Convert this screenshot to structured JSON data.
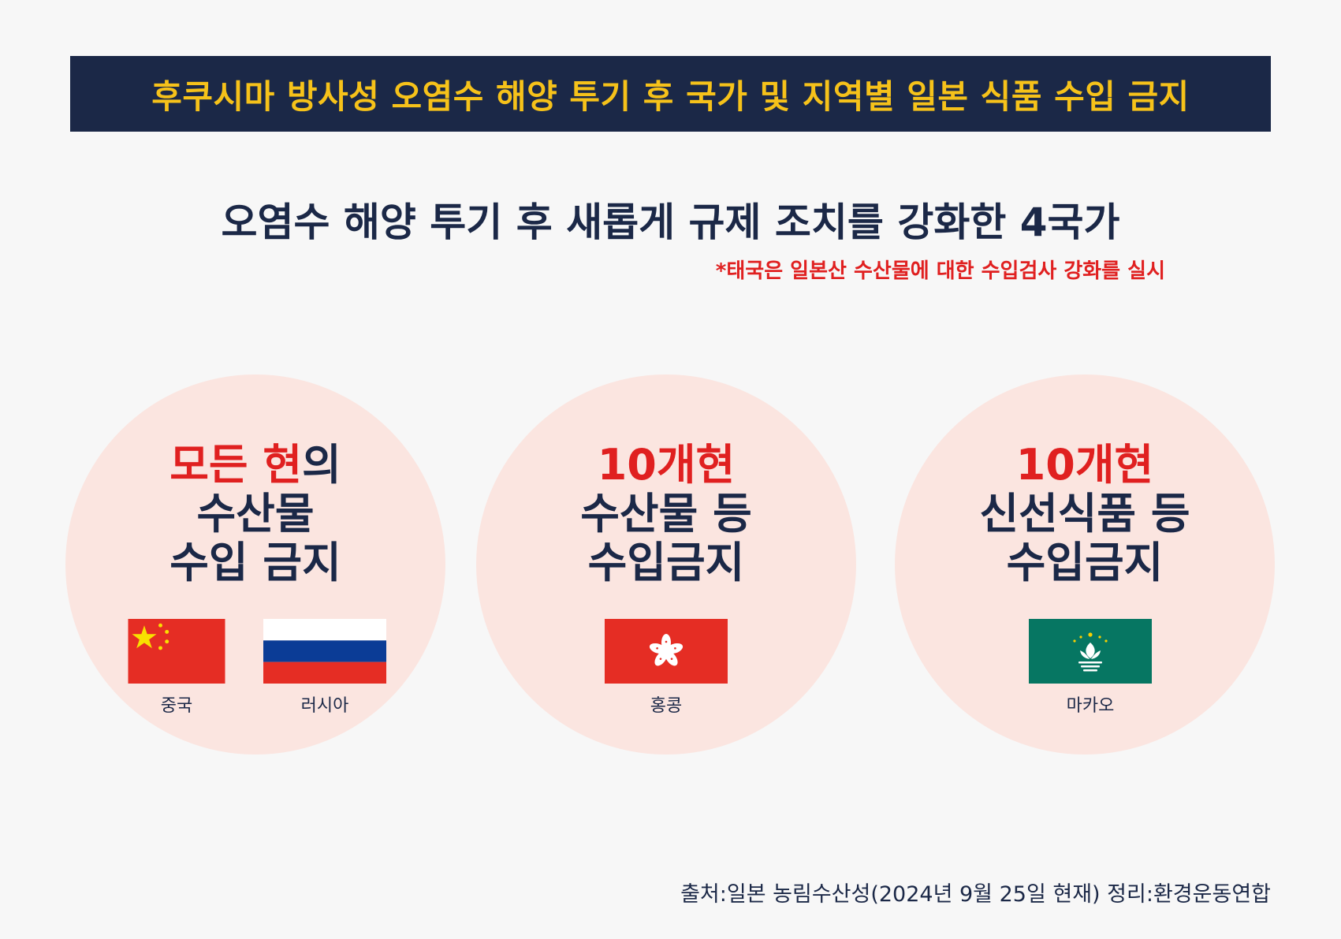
{
  "banner": {
    "title": "후쿠시마 방사성 오염수 해양 투기 후 국가 및 지역별 일본 식품 수입 금지"
  },
  "subtitle": "오염수 해양 투기 후 새롭게 규제 조치를 강화한 4국가",
  "note": "*태국은 일본산 수산물에 대한 수입검사 강화를 실시",
  "cards": [
    {
      "headline_red_1": "모든 현",
      "headline_rest_1": "의",
      "line2": "수산물",
      "line3": "수입 금지",
      "flags": [
        {
          "label": "중국",
          "icon": "china-flag"
        },
        {
          "label": "러시아",
          "icon": "russia-flag"
        }
      ]
    },
    {
      "headline_red_1": "10개현",
      "line2": "수산물 등",
      "line3": "수입금지",
      "flags": [
        {
          "label": "홍콩",
          "icon": "hongkong-flag"
        }
      ]
    },
    {
      "headline_red_1": "10개현",
      "line2": "신선식품 등",
      "line3": "수입금지",
      "flags": [
        {
          "label": "마카오",
          "icon": "macau-flag"
        }
      ]
    }
  ],
  "footer": "출처:일본 농림수산성(2024년 9월 25일 현재) 정리:환경운동연합",
  "colors": {
    "navy": "#1b2847",
    "yellow": "#f6c21a",
    "red": "#e02020",
    "circle": "#fbe5e0"
  }
}
